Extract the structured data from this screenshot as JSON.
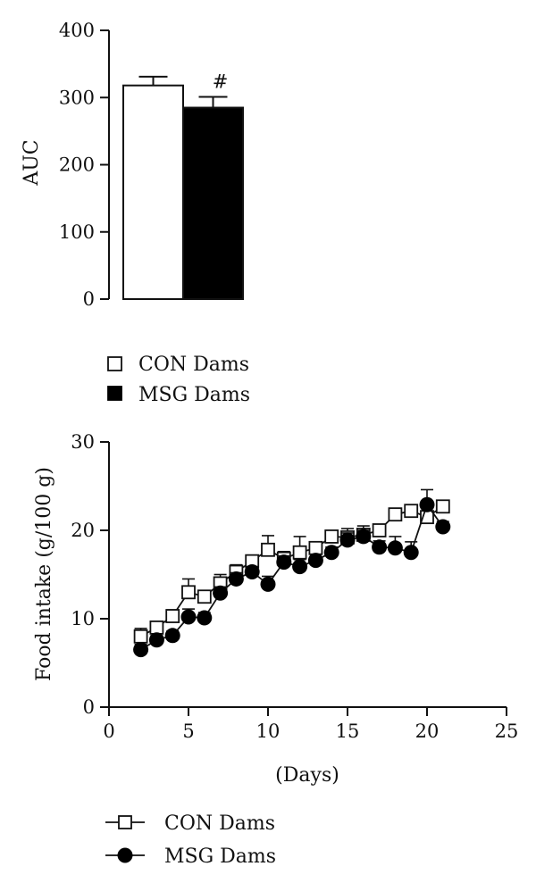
{
  "chart_data": [
    {
      "type": "bar",
      "title": "",
      "xlabel": "",
      "ylabel": "AUC",
      "ylim": [
        0,
        400
      ],
      "yticks": [
        0,
        100,
        200,
        300,
        400
      ],
      "categories": [
        "CON Dams",
        "MSG Dams"
      ],
      "values": [
        318,
        285
      ],
      "errors": [
        13,
        16
      ],
      "annotations": [
        "",
        "#"
      ],
      "colors": [
        "#ffffff",
        "#000000"
      ],
      "legend": {
        "placement": "bottom-left",
        "entries": [
          "CON Dams",
          "MSG Dams"
        ]
      }
    },
    {
      "type": "line",
      "title": "",
      "xlabel": "(Days)",
      "ylabel": "Food intake (g/100 g)",
      "xlim": [
        0,
        25
      ],
      "ylim": [
        0,
        30
      ],
      "xticks": [
        0,
        5,
        10,
        15,
        20,
        25
      ],
      "yticks": [
        0,
        10,
        20,
        30
      ],
      "series": [
        {
          "name": "CON Dams",
          "marker": "open-square",
          "x": [
            2,
            3,
            4,
            5,
            6,
            7,
            8,
            9,
            10,
            11,
            12,
            13,
            14,
            15,
            16,
            17,
            18,
            19,
            20,
            21
          ],
          "y": [
            8.0,
            9.0,
            10.3,
            13.0,
            12.5,
            14.0,
            15.3,
            16.5,
            17.8,
            16.8,
            17.5,
            18.0,
            19.3,
            19.2,
            19.5,
            20.0,
            21.8,
            22.2,
            21.5,
            22.7
          ],
          "err": [
            0.9,
            0.6,
            0.7,
            1.5,
            0.7,
            1.0,
            0.8,
            0.6,
            1.6,
            0.8,
            1.8,
            0.5,
            0.6,
            1.0,
            1.0,
            0.6,
            0.7,
            0.6,
            1.0,
            0.6
          ]
        },
        {
          "name": "MSG Dams",
          "marker": "filled-circle",
          "x": [
            2,
            3,
            4,
            5,
            6,
            7,
            8,
            9,
            10,
            11,
            12,
            13,
            14,
            15,
            16,
            17,
            18,
            19,
            20,
            21
          ],
          "y": [
            6.5,
            7.6,
            8.1,
            10.2,
            10.1,
            12.9,
            14.5,
            15.3,
            13.9,
            16.4,
            15.9,
            16.6,
            17.5,
            18.9,
            19.3,
            18.1,
            18.0,
            17.5,
            22.9,
            20.4
          ],
          "err": [
            0.6,
            0.5,
            0.5,
            0.9,
            0.6,
            0.7,
            0.7,
            0.6,
            0.9,
            0.7,
            0.8,
            0.7,
            0.6,
            0.8,
            0.7,
            0.7,
            1.3,
            1.2,
            1.7,
            0.6
          ]
        }
      ],
      "legend": {
        "placement": "bottom-left",
        "entries": [
          "CON Dams",
          "MSG Dams"
        ]
      }
    }
  ]
}
